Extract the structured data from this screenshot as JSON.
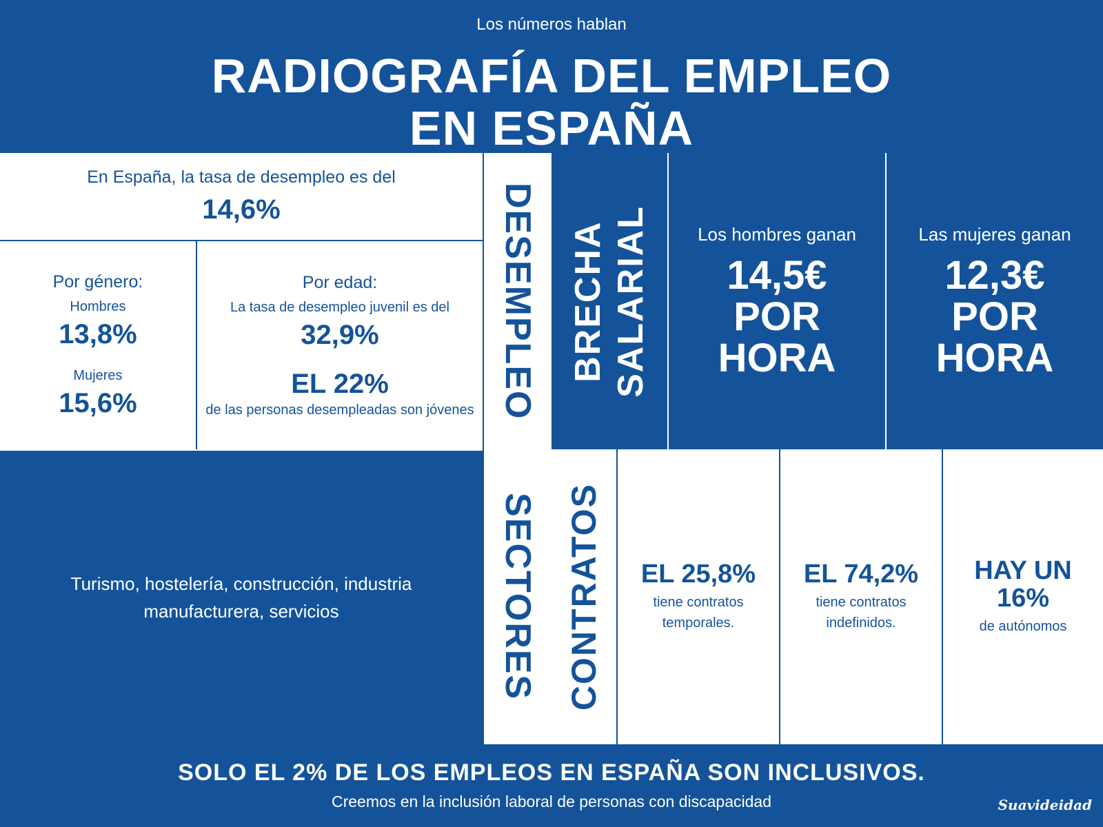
{
  "header": {
    "subtitle": "Los números hablan",
    "title_line1": "RADIOGRAFÍA DEL EMPLEO",
    "title_line2": "EN ESPAÑA"
  },
  "desempleo": {
    "section_label": "DESEMPLEO",
    "rate_text": "En España, la tasa de desempleo es del",
    "rate_value": "14,6%",
    "gender_title": "Por género:",
    "men_label": "Hombres",
    "men_value": "13,8%",
    "women_label": "Mujeres",
    "women_value": "15,6%",
    "age_title": "Por edad:",
    "youth_text": "La tasa de desempleo juvenil es del",
    "youth_value": "32,9%",
    "youth_share_value": "EL 22%",
    "youth_share_text": "de las personas desempleadas son jóvenes"
  },
  "brecha": {
    "label_line1": "BRECHA",
    "label_line2": "SALARIAL",
    "men_text": "Los hombres ganan",
    "men_amount": "14,5€",
    "women_text": "Las mujeres ganan",
    "women_amount": "12,3€",
    "per_line1": "POR",
    "per_line2": "HORA"
  },
  "sectores": {
    "section_label": "SECTORES",
    "line1": "Turismo, hostelería, construcción, industria",
    "line2": "manufacturera, servicios"
  },
  "contratos": {
    "section_label": "CONTRATOS",
    "temp_value": "EL 25,8%",
    "temp_text1": "tiene contratos",
    "temp_text2": "temporales.",
    "indef_value": "EL 74,2%",
    "indef_text1": "tiene contratos",
    "indef_text2": "indefinidos.",
    "auto_line1": "HAY UN",
    "auto_line2": "16%",
    "auto_text": "de autónomos"
  },
  "footer": {
    "headline": "SOLO EL 2% DE LOS EMPLEOS EN ESPAÑA SON INCLUSIVOS.",
    "subline": "Creemos en la inclusión laboral de personas con discapacidad",
    "brand": "Suavideidad"
  },
  "colors": {
    "brand_blue": "#14539a",
    "white": "#ffffff"
  }
}
